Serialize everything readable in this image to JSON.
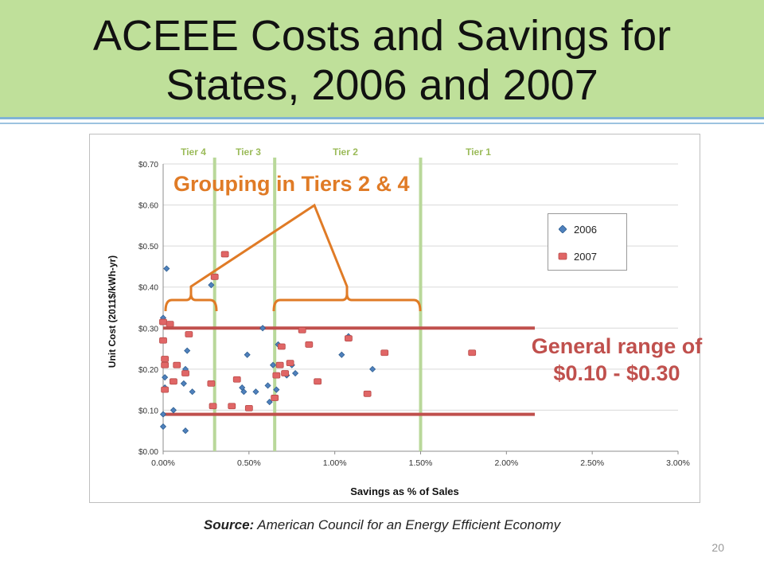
{
  "slide": {
    "title_line1": "ACEEE Costs and Savings for",
    "title_line2": "States, 2006 and 2007",
    "source_label": "Source:",
    "source_text": "American Council for an Energy Efficient Economy",
    "page_number": "20"
  },
  "annotations": {
    "grouping": "Grouping in Tiers 2 & 4",
    "range_line1": "General range of",
    "range_line2": "$0.10 - $0.30"
  },
  "colors": {
    "accent_orange": "#e07b26",
    "range_red": "#c0504d",
    "tier_green": "#b9d89a",
    "series_2006": "#4f81bd",
    "series_2007": "#c0504d"
  },
  "chart_data": {
    "type": "scatter",
    "xlabel": "Savings as % of Sales",
    "ylabel": "Unit Cost (2011$/kWh-yr)",
    "xlim": [
      0,
      0.03
    ],
    "ylim": [
      0,
      0.7
    ],
    "x_ticks": [
      "0.00%",
      "0.50%",
      "1.00%",
      "1.50%",
      "2.00%",
      "2.50%",
      "3.00%"
    ],
    "y_ticks": [
      "$0.00",
      "$0.10",
      "$0.20",
      "$0.30",
      "$0.40",
      "$0.50",
      "$0.60",
      "$0.70"
    ],
    "grid": true,
    "legend_position": "right",
    "tiers": [
      {
        "label": "Tier 4",
        "x_end": 0.003
      },
      {
        "label": "Tier 3",
        "x_end": 0.0065
      },
      {
        "label": "Tier 2",
        "x_end": 0.015
      },
      {
        "label": "Tier 1",
        "x_end": null
      }
    ],
    "range_lines": [
      0.3,
      0.09
    ],
    "series": [
      {
        "name": "2006",
        "points": [
          [
            0.0,
            0.325
          ],
          [
            0.0,
            0.06
          ],
          [
            0.0,
            0.09
          ],
          [
            0.0001,
            0.155
          ],
          [
            0.0001,
            0.18
          ],
          [
            0.0002,
            0.445
          ],
          [
            0.0006,
            0.1
          ],
          [
            0.0012,
            0.165
          ],
          [
            0.0013,
            0.05
          ],
          [
            0.0013,
            0.2
          ],
          [
            0.0014,
            0.245
          ],
          [
            0.0017,
            0.145
          ],
          [
            0.0028,
            0.405
          ],
          [
            0.0046,
            0.155
          ],
          [
            0.0047,
            0.145
          ],
          [
            0.0049,
            0.235
          ],
          [
            0.0054,
            0.145
          ],
          [
            0.0058,
            0.3
          ],
          [
            0.0061,
            0.16
          ],
          [
            0.0062,
            0.12
          ],
          [
            0.0064,
            0.21
          ],
          [
            0.0066,
            0.15
          ],
          [
            0.0067,
            0.26
          ],
          [
            0.0072,
            0.185
          ],
          [
            0.0075,
            0.21
          ],
          [
            0.0077,
            0.19
          ],
          [
            0.0104,
            0.235
          ],
          [
            0.0108,
            0.28
          ],
          [
            0.0122,
            0.2
          ]
        ]
      },
      {
        "name": "2007",
        "points": [
          [
            0.0,
            0.315
          ],
          [
            0.0,
            0.27
          ],
          [
            0.0001,
            0.225
          ],
          [
            0.0001,
            0.21
          ],
          [
            0.0001,
            0.15
          ],
          [
            0.0004,
            0.31
          ],
          [
            0.0006,
            0.17
          ],
          [
            0.0008,
            0.21
          ],
          [
            0.0013,
            0.19
          ],
          [
            0.0015,
            0.285
          ],
          [
            0.0028,
            0.165
          ],
          [
            0.0029,
            0.11
          ],
          [
            0.003,
            0.425
          ],
          [
            0.0036,
            0.48
          ],
          [
            0.004,
            0.11
          ],
          [
            0.0043,
            0.175
          ],
          [
            0.005,
            0.105
          ],
          [
            0.0065,
            0.13
          ],
          [
            0.0066,
            0.185
          ],
          [
            0.0068,
            0.21
          ],
          [
            0.0069,
            0.255
          ],
          [
            0.0071,
            0.19
          ],
          [
            0.0074,
            0.215
          ],
          [
            0.0081,
            0.295
          ],
          [
            0.0085,
            0.26
          ],
          [
            0.009,
            0.17
          ],
          [
            0.0108,
            0.275
          ],
          [
            0.0119,
            0.14
          ],
          [
            0.0129,
            0.24
          ],
          [
            0.018,
            0.24
          ]
        ]
      }
    ]
  }
}
